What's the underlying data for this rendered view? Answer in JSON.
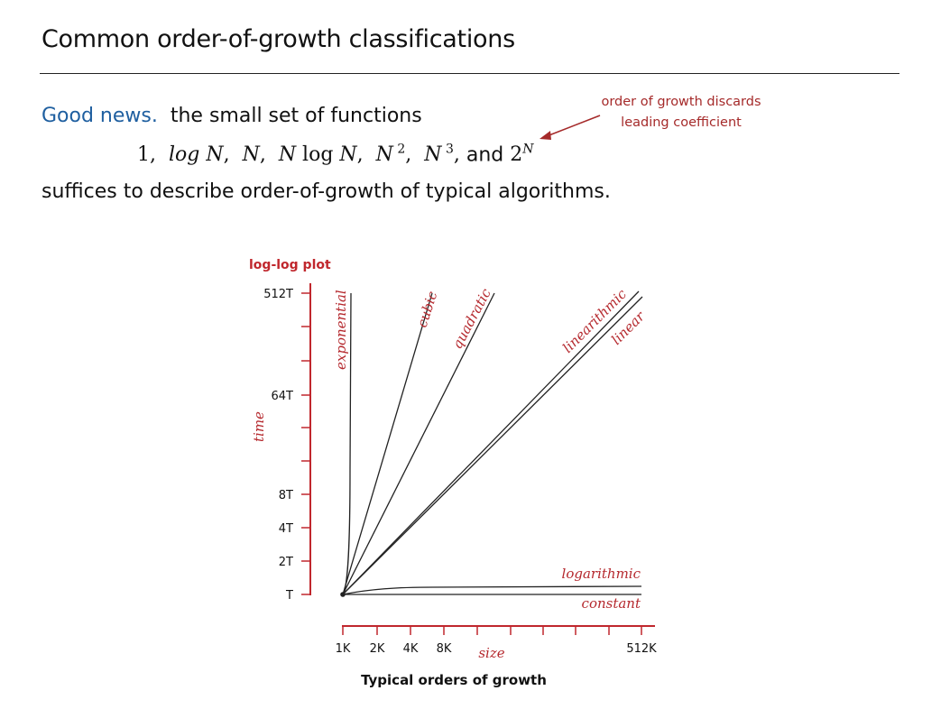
{
  "slide": {
    "title": "Common order-of-growth classifications",
    "good_news_label": "Good news.",
    "line1_rest": "the small set of functions",
    "formula_terms": "1,  log N,  N,  N log N,  N 2,  N 3,",
    "formula_and": "and",
    "formula_last": "2N",
    "line3": "suffices to describe order-of-growth of typical algorithms.",
    "annotation_line1": "order of growth discards",
    "annotation_line2": "leading coefficient"
  },
  "diagram": {
    "header": "log-log plot",
    "y_axis_label": "time",
    "x_axis_label": "size",
    "caption": "Typical orders of growth",
    "y_ticks": [
      "512T",
      "64T",
      "8T",
      "4T",
      "2T",
      "T"
    ],
    "x_ticks": [
      "1K",
      "2K",
      "4K",
      "8K",
      "512K"
    ],
    "curves": [
      "exponential",
      "cubic",
      "quadratic",
      "linearithmic",
      "linear",
      "logarithmic",
      "constant"
    ]
  }
}
